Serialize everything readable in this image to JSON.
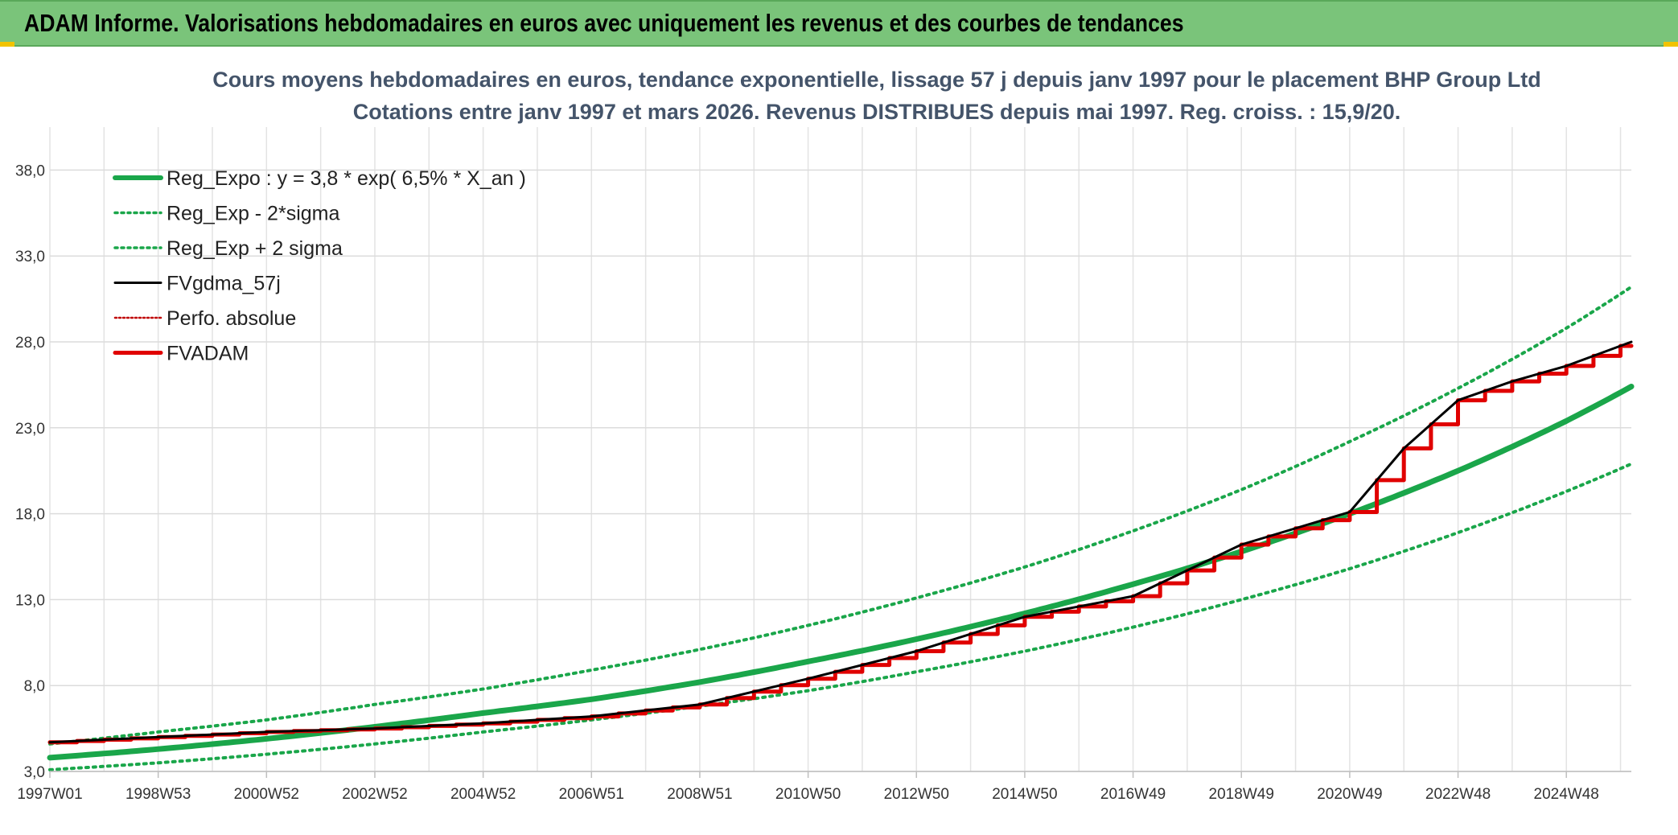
{
  "header": {
    "title": "ADAM Informe. Valorisations hebdomadaires en euros avec uniquement les revenus et des courbes de tendances",
    "background": "#7ac47a"
  },
  "chart_data": {
    "type": "line",
    "title": "Cours moyens hebdomadaires en euros, tendance exponentielle, lissage 57 j depuis janv 1997 pour le placement BHP Group Ltd",
    "subtitle": "Cotations entre janv 1997 et mars 2026. Revenus DISTRIBUES depuis mai 1997. Reg. croiss. : 15,9/20.",
    "xlabel": "",
    "ylabel": "",
    "ylim": [
      3.0,
      40.5
    ],
    "xlim": [
      1997.0,
      2026.2
    ],
    "yticks": [
      "3,0",
      "8,0",
      "13,0",
      "18,0",
      "23,0",
      "28,0",
      "33,0",
      "38,0"
    ],
    "ytick_values": [
      3,
      8,
      13,
      18,
      23,
      28,
      33,
      38
    ],
    "xticks": [
      "1997W01",
      "1998W53",
      "2000W52",
      "2002W52",
      "2004W52",
      "2006W51",
      "2008W51",
      "2010W50",
      "2012W50",
      "2014W50",
      "2016W49",
      "2018W49",
      "2020W49",
      "2022W48",
      "2024W48"
    ],
    "xtick_values": [
      1997.0,
      1999.0,
      2001.0,
      2003.0,
      2005.0,
      2007.0,
      2009.0,
      2011.0,
      2013.0,
      2015.0,
      2017.0,
      2019.0,
      2021.0,
      2023.0,
      2025.0
    ],
    "grid": true,
    "legend_position": "top-left",
    "series": [
      {
        "name": "Reg_Expo : y = 3,8 * exp( 6,5% *  X_an )",
        "color": "#1aa64a",
        "style": "solid-thick",
        "x": [
          1997,
          1999,
          2001,
          2003,
          2005,
          2007,
          2009,
          2011,
          2013,
          2015,
          2017,
          2019,
          2021,
          2023,
          2025,
          2026.2
        ],
        "values": [
          3.8,
          4.3,
          4.9,
          5.6,
          6.4,
          7.2,
          8.2,
          9.4,
          10.7,
          12.2,
          13.9,
          15.8,
          18.0,
          20.5,
          23.4,
          25.4
        ]
      },
      {
        "name": "Reg_Exp - 2*sigma",
        "color": "#1aa64a",
        "style": "dotted",
        "x": [
          1997,
          1999,
          2001,
          2003,
          2005,
          2007,
          2009,
          2011,
          2013,
          2015,
          2017,
          2019,
          2021,
          2023,
          2025,
          2026.2
        ],
        "values": [
          3.1,
          3.5,
          4.0,
          4.6,
          5.3,
          6.0,
          6.8,
          7.7,
          8.8,
          10.0,
          11.4,
          13.0,
          14.8,
          16.9,
          19.3,
          20.9
        ]
      },
      {
        "name": "Reg_Exp + 2 sigma",
        "color": "#1aa64a",
        "style": "dotted",
        "x": [
          1997,
          1999,
          2001,
          2003,
          2005,
          2007,
          2009,
          2011,
          2013,
          2015,
          2017,
          2019,
          2021,
          2023,
          2025,
          2026.2
        ],
        "values": [
          4.6,
          5.3,
          6.0,
          6.9,
          7.8,
          8.9,
          10.1,
          11.5,
          13.1,
          14.9,
          17.0,
          19.4,
          22.2,
          25.3,
          28.8,
          31.2
        ]
      },
      {
        "name": "FVgdma_57j",
        "color": "#000000",
        "style": "solid",
        "x": [
          1997,
          1999,
          2001,
          2003,
          2005,
          2007,
          2009,
          2011,
          2013,
          2015,
          2017,
          2019,
          2021,
          2022,
          2023,
          2024,
          2025,
          2026.2
        ],
        "values": [
          4.7,
          5.0,
          5.3,
          5.5,
          5.8,
          6.2,
          6.9,
          8.4,
          10.0,
          12.0,
          13.2,
          16.2,
          18.1,
          21.8,
          24.6,
          25.7,
          26.6,
          28.0
        ]
      },
      {
        "name": "Perfo. absolue",
        "color": "#c00000",
        "style": "dotted",
        "x": [],
        "values": []
      },
      {
        "name": "FVADAM",
        "color": "#e00000",
        "style": "steps-thick",
        "x": [
          1997,
          1999,
          2001,
          2003,
          2005,
          2007,
          2009,
          2011,
          2013,
          2015,
          2017,
          2019,
          2021,
          2022,
          2023,
          2024,
          2025,
          2026.2
        ],
        "values": [
          4.7,
          5.0,
          5.3,
          5.5,
          5.8,
          6.2,
          6.9,
          8.4,
          10.0,
          12.0,
          13.2,
          16.2,
          18.1,
          21.8,
          24.6,
          25.7,
          26.6,
          28.0
        ]
      }
    ]
  }
}
